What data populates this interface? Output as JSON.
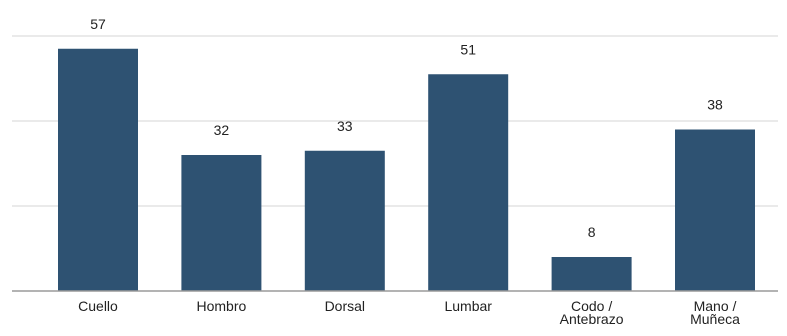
{
  "chart_data": {
    "type": "bar",
    "title": "",
    "xlabel": "",
    "ylabel": "",
    "categories": [
      [
        "Cuello"
      ],
      [
        "Hombro"
      ],
      [
        "Dorsal"
      ],
      [
        "Lumbar"
      ],
      [
        "Codo /",
        "Antebrazo"
      ],
      [
        "Mano /",
        "Muñeca"
      ]
    ],
    "values": [
      57,
      32,
      33,
      51,
      8,
      38
    ],
    "value_labels": [
      "57",
      "32",
      "33",
      "51",
      "8",
      "38"
    ],
    "ylim": [
      0,
      60
    ],
    "gridlines": [
      20,
      40,
      60
    ],
    "grid": true,
    "legend": "none",
    "colors": {
      "bar": "#2e5272",
      "grid": "#d6d6d6",
      "axis": "#9a9a9a",
      "text": "#222222"
    }
  }
}
